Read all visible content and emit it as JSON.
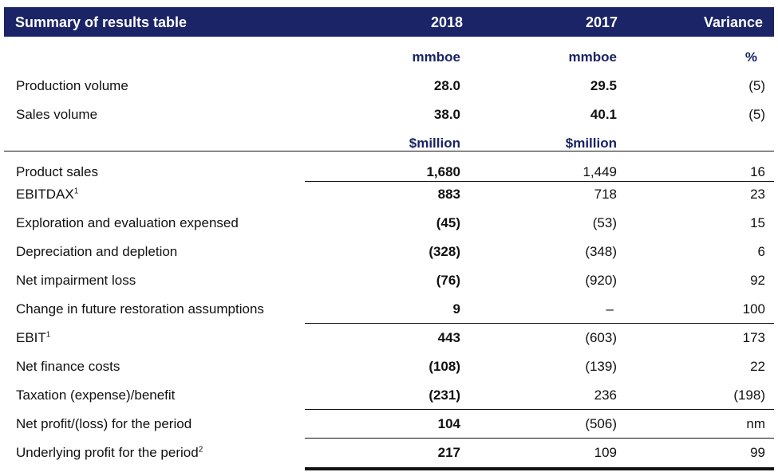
{
  "header": {
    "title": "Summary of results table",
    "col_2018": "2018",
    "col_2017": "2017",
    "col_variance": "Variance"
  },
  "units_volume": {
    "v18": "mmboe",
    "v17": "mmboe",
    "var": "%"
  },
  "units_money": {
    "v18": "$million",
    "v17": "$million"
  },
  "rows": [
    {
      "label": "Production volume",
      "sup": "",
      "v18": "28.0",
      "v17": "29.5",
      "var": "(5)"
    },
    {
      "label": "Sales volume",
      "sup": "",
      "v18": "38.0",
      "v17": "40.1",
      "var": "(5)"
    },
    {
      "label": "Product sales",
      "sup": "",
      "v18": "1,680",
      "v17": "1,449",
      "var": "16"
    },
    {
      "label": "EBITDAX",
      "sup": "1",
      "v18": "883",
      "v17": "718",
      "var": "23"
    },
    {
      "label": "Exploration and evaluation expensed",
      "sup": "",
      "v18": "(45)",
      "v17": "(53)",
      "var": "15"
    },
    {
      "label": "Depreciation and depletion",
      "sup": "",
      "v18": "(328)",
      "v17": "(348)",
      "var": "6"
    },
    {
      "label": "Net impairment loss",
      "sup": "",
      "v18": "(76)",
      "v17": "(920)",
      "var": "92"
    },
    {
      "label": "Change in future restoration assumptions",
      "sup": "",
      "v18": "9",
      "v17": "–",
      "var": "100"
    },
    {
      "label": "EBIT",
      "sup": "1",
      "v18": "443",
      "v17": "(603)",
      "var": "173"
    },
    {
      "label": "Net finance costs",
      "sup": "",
      "v18": "(108)",
      "v17": "(139)",
      "var": "22"
    },
    {
      "label": "Taxation (expense)/benefit",
      "sup": "",
      "v18": "(231)",
      "v17": "236",
      "var": "(198)"
    },
    {
      "label": "Net profit/(loss) for the period",
      "sup": "",
      "v18": "104",
      "v17": "(506)",
      "var": "nm"
    },
    {
      "label": "Underlying profit for the period",
      "sup": "2",
      "v18": "217",
      "v17": "109",
      "var": "99"
    }
  ]
}
